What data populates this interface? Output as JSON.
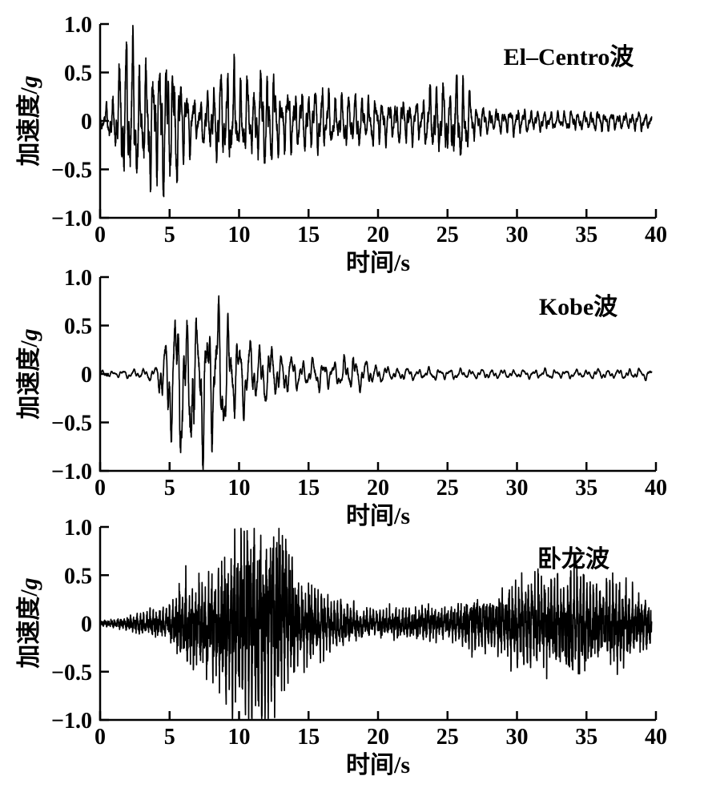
{
  "figure": {
    "background": "#ffffff",
    "ink_color": "#000000"
  },
  "chart_data": [
    {
      "type": "line",
      "title": "El–Centro波",
      "ylabel": "加速度/g",
      "ylabel_text": "加速度/",
      "ylabel_symbol": "g",
      "xlabel": "时间/s",
      "xlabel_text": "时间/",
      "xlabel_symbol": "s",
      "xlim": [
        0,
        40
      ],
      "ylim": [
        -1.0,
        1.0
      ],
      "x_ticks": [
        0,
        5,
        10,
        15,
        20,
        25,
        30,
        35,
        40
      ],
      "x_tick_labels": [
        "0",
        "5",
        "10",
        "15",
        "20",
        "25",
        "30",
        "35",
        "40"
      ],
      "y_ticks": [
        1.0,
        0.5,
        0,
        -0.5,
        -1.0
      ],
      "y_tick_labels": [
        "1.0",
        "0.5",
        "0",
        "−0.5",
        "−1.0"
      ],
      "grid": false,
      "legend": "none",
      "peak_acceleration_g": 0.95,
      "peak_time_s": 2.1,
      "min_acceleration_g": -0.68,
      "dominant_freq_hz": 2.0,
      "series_description": "Ground acceleration waveform reconstructed from per-second amplitude envelope (g), sampled at t = 0..40 s",
      "envelope_t_s": [
        0,
        1,
        2,
        3,
        4,
        5,
        6,
        7,
        8,
        9,
        10,
        11,
        12,
        13,
        14,
        15,
        16,
        17,
        18,
        19,
        20,
        21,
        22,
        23,
        24,
        25,
        26,
        27,
        28,
        29,
        30,
        31,
        32,
        33,
        34,
        35,
        36,
        37,
        38,
        39,
        40
      ],
      "envelope_pos_g": [
        0.06,
        0.25,
        0.95,
        0.5,
        0.6,
        0.65,
        0.4,
        0.18,
        0.3,
        0.5,
        0.45,
        0.35,
        0.55,
        0.3,
        0.32,
        0.28,
        0.35,
        0.22,
        0.28,
        0.22,
        0.22,
        0.18,
        0.22,
        0.18,
        0.38,
        0.3,
        0.45,
        0.15,
        0.12,
        0.1,
        0.13,
        0.1,
        0.09,
        0.08,
        0.1,
        0.08,
        0.1,
        0.08,
        0.07,
        0.1,
        0.06
      ],
      "envelope_neg_g": [
        0.06,
        0.25,
        0.68,
        0.55,
        0.65,
        0.68,
        0.4,
        0.18,
        0.32,
        0.42,
        0.35,
        0.3,
        0.5,
        0.28,
        0.3,
        0.26,
        0.3,
        0.22,
        0.26,
        0.22,
        0.24,
        0.18,
        0.22,
        0.18,
        0.32,
        0.35,
        0.48,
        0.15,
        0.12,
        0.1,
        0.13,
        0.1,
        0.09,
        0.08,
        0.1,
        0.08,
        0.1,
        0.08,
        0.07,
        0.1,
        0.06
      ]
    },
    {
      "type": "line",
      "title": "Kobe波",
      "ylabel": "加速度/g",
      "ylabel_text": "加速度/",
      "ylabel_symbol": "g",
      "xlabel": "时间/s",
      "xlabel_text": "时间/",
      "xlabel_symbol": "s",
      "xlim": [
        0,
        40
      ],
      "ylim": [
        -1.0,
        1.0
      ],
      "x_ticks": [
        0,
        5,
        10,
        15,
        20,
        25,
        30,
        35,
        40
      ],
      "x_tick_labels": [
        "0",
        "5",
        "10",
        "15",
        "20",
        "25",
        "30",
        "35",
        "40"
      ],
      "y_ticks": [
        1.0,
        0.5,
        0,
        -0.5,
        -1.0
      ],
      "y_tick_labels": [
        "1.0",
        "0.5",
        "0",
        "−0.5",
        "−1.0"
      ],
      "grid": false,
      "legend": "none",
      "peak_acceleration_g": 0.7,
      "peak_time_s": 8.3,
      "min_acceleration_g": -0.95,
      "dominant_freq_hz": 1.4,
      "series_description": "Ground acceleration waveform reconstructed from per-second amplitude envelope (g), sampled at t = 0..40 s",
      "envelope_t_s": [
        0,
        1,
        2,
        3,
        4,
        5,
        6,
        7,
        8,
        9,
        10,
        11,
        12,
        13,
        14,
        15,
        16,
        17,
        18,
        19,
        20,
        21,
        22,
        23,
        24,
        25,
        26,
        27,
        28,
        29,
        30,
        31,
        32,
        33,
        34,
        35,
        36,
        37,
        38,
        39,
        40
      ],
      "envelope_pos_g": [
        0.03,
        0.03,
        0.04,
        0.05,
        0.06,
        0.5,
        0.6,
        0.45,
        0.7,
        0.6,
        0.35,
        0.32,
        0.28,
        0.22,
        0.16,
        0.13,
        0.16,
        0.11,
        0.22,
        0.14,
        0.09,
        0.06,
        0.06,
        0.05,
        0.06,
        0.05,
        0.05,
        0.04,
        0.05,
        0.04,
        0.04,
        0.04,
        0.05,
        0.04,
        0.04,
        0.04,
        0.05,
        0.04,
        0.05,
        0.05,
        0.06
      ],
      "envelope_neg_g": [
        0.03,
        0.03,
        0.04,
        0.05,
        0.07,
        0.65,
        0.95,
        0.85,
        0.75,
        0.62,
        0.4,
        0.32,
        0.28,
        0.22,
        0.16,
        0.13,
        0.16,
        0.11,
        0.16,
        0.14,
        0.09,
        0.06,
        0.06,
        0.05,
        0.06,
        0.05,
        0.05,
        0.04,
        0.05,
        0.04,
        0.04,
        0.04,
        0.05,
        0.04,
        0.04,
        0.04,
        0.05,
        0.04,
        0.05,
        0.05,
        0.06
      ]
    },
    {
      "type": "line",
      "title": "卧龙波",
      "ylabel": "加速度/g",
      "ylabel_text": "加速度/",
      "ylabel_symbol": "g",
      "xlabel": "时间/s",
      "xlabel_text": "时间/",
      "xlabel_symbol": "s",
      "xlim": [
        0,
        40
      ],
      "ylim": [
        -1.0,
        1.0
      ],
      "x_ticks": [
        0,
        5,
        10,
        15,
        20,
        25,
        30,
        35,
        40
      ],
      "x_tick_labels": [
        "0",
        "5",
        "10",
        "15",
        "20",
        "25",
        "30",
        "35",
        "40"
      ],
      "y_ticks": [
        1.0,
        0.5,
        0,
        -0.5,
        -1.0
      ],
      "y_tick_labels": [
        "1.0",
        "0.5",
        "0",
        "−0.5",
        "−1.0"
      ],
      "grid": false,
      "legend": "none",
      "peak_acceleration_g": 0.95,
      "peak_time_s": 13.1,
      "min_acceleration_g": -0.75,
      "dominant_freq_hz": 4.2,
      "series_description": "Ground acceleration waveform reconstructed from per-second amplitude envelope (g), sampled at t = 0..40 s",
      "envelope_t_s": [
        0,
        1,
        2,
        3,
        4,
        5,
        6,
        7,
        8,
        9,
        10,
        11,
        12,
        13,
        14,
        15,
        16,
        17,
        18,
        19,
        20,
        21,
        22,
        23,
        24,
        25,
        26,
        27,
        28,
        29,
        30,
        31,
        32,
        33,
        34,
        35,
        36,
        37,
        38,
        39,
        40
      ],
      "envelope_pos_g": [
        0.02,
        0.03,
        0.05,
        0.08,
        0.1,
        0.13,
        0.32,
        0.27,
        0.38,
        0.45,
        0.7,
        0.75,
        0.6,
        0.95,
        0.35,
        0.27,
        0.23,
        0.16,
        0.13,
        0.11,
        0.09,
        0.11,
        0.11,
        0.13,
        0.11,
        0.11,
        0.16,
        0.2,
        0.18,
        0.22,
        0.32,
        0.3,
        0.36,
        0.3,
        0.45,
        0.3,
        0.26,
        0.32,
        0.26,
        0.2,
        0.16
      ],
      "envelope_neg_g": [
        0.02,
        0.03,
        0.05,
        0.08,
        0.1,
        0.13,
        0.27,
        0.32,
        0.38,
        0.5,
        0.68,
        0.75,
        0.62,
        0.5,
        0.35,
        0.27,
        0.23,
        0.16,
        0.13,
        0.11,
        0.09,
        0.11,
        0.11,
        0.13,
        0.11,
        0.11,
        0.16,
        0.2,
        0.18,
        0.22,
        0.32,
        0.3,
        0.36,
        0.3,
        0.4,
        0.3,
        0.26,
        0.32,
        0.26,
        0.2,
        0.16
      ]
    }
  ]
}
